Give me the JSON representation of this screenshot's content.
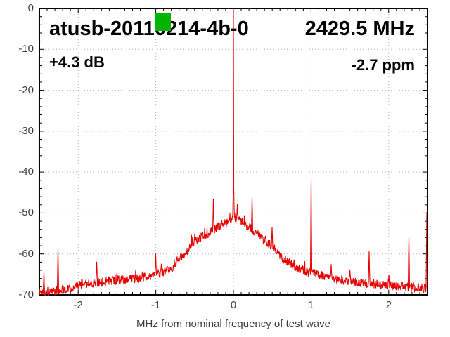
{
  "overlay": {
    "title_left": "atusb-20110214-4b-0",
    "title_right": "2429.5 MHz",
    "gain_label": "+4.3 dB",
    "ppm_label": "-2.7 ppm"
  },
  "marker": {
    "name": "green-square-marker",
    "color": "#00b400"
  },
  "chart_data": {
    "type": "line",
    "title": "atusb-20110214-4b-0",
    "subtitle_right": "2429.5 MHz",
    "annotations": [
      "+4.3 dB",
      "-2.7 ppm"
    ],
    "xlabel": "MHz from nominal frequency of test wave",
    "ylabel": "",
    "xlim": [
      -2.5,
      2.5
    ],
    "ylim": [
      -70,
      0
    ],
    "x_ticks": [
      -2,
      -1,
      0,
      1,
      2
    ],
    "x_tick_labels": [
      "-2",
      "-1",
      "0",
      "1",
      "2"
    ],
    "y_ticks": [
      0,
      -10,
      -20,
      -30,
      -40,
      -50,
      -60,
      -70
    ],
    "y_tick_labels": [
      "0",
      "-10",
      "-20",
      "-30",
      "-40",
      "-50",
      "-60",
      "-70"
    ],
    "x_minor_step": 0.1,
    "y_minor_step": 2,
    "grid": true,
    "grid_color": "#b3b3b3",
    "trace_color": "#e60000",
    "noise_amplitude_db": 1.15,
    "carrier": {
      "x": 0.0,
      "peak_db": 0,
      "shoulder_db": [
        -46,
        -44
      ]
    },
    "baseline_points": [
      [
        -2.5,
        -69.3
      ],
      [
        -2.3,
        -69.0
      ],
      [
        -2.1,
        -68.3
      ],
      [
        -1.9,
        -67.2
      ],
      [
        -1.7,
        -66.8
      ],
      [
        -1.5,
        -66.4
      ],
      [
        -1.3,
        -66.1
      ],
      [
        -1.1,
        -65.6
      ],
      [
        -1.0,
        -65.2
      ],
      [
        -0.9,
        -64.6
      ],
      [
        -0.8,
        -63.8
      ],
      [
        -0.75,
        -62.0
      ],
      [
        -0.7,
        -61.4
      ],
      [
        -0.6,
        -59.6
      ],
      [
        -0.5,
        -56.8
      ],
      [
        -0.45,
        -56.2
      ],
      [
        -0.4,
        -55.7
      ],
      [
        -0.35,
        -55.1
      ],
      [
        -0.3,
        -54.6
      ],
      [
        -0.25,
        -54.0
      ],
      [
        -0.2,
        -53.4
      ],
      [
        -0.15,
        -52.8
      ],
      [
        -0.1,
        -52.3
      ],
      [
        -0.05,
        -51.8
      ],
      [
        0.0,
        -51.3
      ],
      [
        0.05,
        -51.7
      ],
      [
        0.1,
        -52.2
      ],
      [
        0.15,
        -52.8
      ],
      [
        0.2,
        -53.4
      ],
      [
        0.25,
        -54.1
      ],
      [
        0.3,
        -54.9
      ],
      [
        0.35,
        -55.7
      ],
      [
        0.4,
        -56.6
      ],
      [
        0.45,
        -57.4
      ],
      [
        0.5,
        -57.9
      ],
      [
        0.6,
        -60.2
      ],
      [
        0.7,
        -62.0
      ],
      [
        0.8,
        -63.2
      ],
      [
        0.9,
        -64.0
      ],
      [
        1.0,
        -64.6
      ],
      [
        1.1,
        -65.2
      ],
      [
        1.3,
        -66.0
      ],
      [
        1.5,
        -66.6
      ],
      [
        1.7,
        -67.1
      ],
      [
        1.9,
        -67.5
      ],
      [
        2.1,
        -67.9
      ],
      [
        2.3,
        -68.2
      ],
      [
        2.5,
        -68.4
      ]
    ],
    "spurs": [
      {
        "x": -2.44,
        "db": -64.3
      },
      {
        "x": -2.26,
        "db": -58.6
      },
      {
        "x": -1.9,
        "db": -66.3
      },
      {
        "x": -1.76,
        "db": -61.9
      },
      {
        "x": -1.5,
        "db": -64.6
      },
      {
        "x": -1.26,
        "db": -64.0
      },
      {
        "x": -1.0,
        "db": -59.9
      },
      {
        "x": -0.93,
        "db": -62.4
      },
      {
        "x": -0.5,
        "db": -55.0
      },
      {
        "x": -0.26,
        "db": -46.6
      },
      {
        "x": 0.05,
        "db": -47.8
      },
      {
        "x": 0.24,
        "db": -46.2
      },
      {
        "x": 0.5,
        "db": -53.5
      },
      {
        "x": 1.0,
        "db": -41.8
      },
      {
        "x": 1.26,
        "db": -62.5
      },
      {
        "x": 1.5,
        "db": -63.8
      },
      {
        "x": 1.75,
        "db": -59.4
      },
      {
        "x": 2.0,
        "db": -65.0
      },
      {
        "x": 2.26,
        "db": -55.8
      },
      {
        "x": 2.49,
        "db": -49.8
      }
    ]
  }
}
